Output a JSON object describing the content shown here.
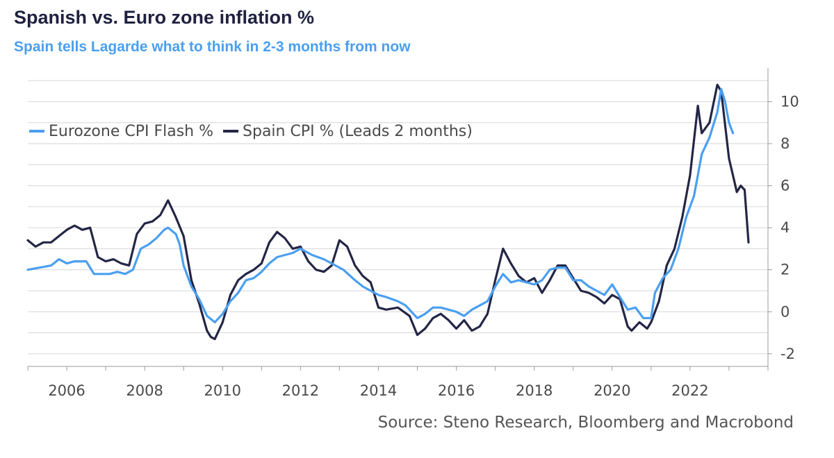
{
  "title": "Spanish vs. Euro zone inflation %",
  "subtitle": "Spain tells Lagarde what to think in 2-3 months from now",
  "source": "Source: Steno Research, Bloomberg and Macrobond",
  "colors": {
    "eurozone": "#4a9ff0",
    "spain": "#232645",
    "grid": "#d6d6d6",
    "title": "#1f2140"
  },
  "chart_data": {
    "type": "line",
    "xlim": [
      2005,
      2024
    ],
    "ylim": [
      -2.6,
      11.6
    ],
    "x_ticks": [
      2006,
      2008,
      2010,
      2012,
      2014,
      2016,
      2018,
      2020,
      2022
    ],
    "x_tick_labels": [
      "2006",
      "2008",
      "2010",
      "2012",
      "2014",
      "2016",
      "2018",
      "2020",
      "2022"
    ],
    "y_ticks": [
      -2,
      0,
      2,
      4,
      6,
      8,
      10
    ],
    "y_tick_labels": [
      "-2",
      "0",
      "2",
      "4",
      "6",
      "8",
      "10"
    ],
    "grid": true,
    "legend_position": "top-left",
    "series": [
      {
        "name": "Eurozone CPI Flash %",
        "color": "#4a9ff0",
        "points": [
          [
            2005.0,
            2.0
          ],
          [
            2005.3,
            2.1
          ],
          [
            2005.6,
            2.2
          ],
          [
            2005.8,
            2.5
          ],
          [
            2006.0,
            2.3
          ],
          [
            2006.2,
            2.4
          ],
          [
            2006.5,
            2.4
          ],
          [
            2006.7,
            1.8
          ],
          [
            2006.9,
            1.8
          ],
          [
            2007.1,
            1.8
          ],
          [
            2007.3,
            1.9
          ],
          [
            2007.5,
            1.8
          ],
          [
            2007.7,
            2.0
          ],
          [
            2007.9,
            3.0
          ],
          [
            2008.1,
            3.2
          ],
          [
            2008.3,
            3.5
          ],
          [
            2008.5,
            3.9
          ],
          [
            2008.6,
            4.0
          ],
          [
            2008.8,
            3.7
          ],
          [
            2008.9,
            3.2
          ],
          [
            2009.0,
            2.2
          ],
          [
            2009.2,
            1.2
          ],
          [
            2009.4,
            0.6
          ],
          [
            2009.5,
            0.2
          ],
          [
            2009.6,
            -0.2
          ],
          [
            2009.8,
            -0.5
          ],
          [
            2010.0,
            -0.1
          ],
          [
            2010.2,
            0.5
          ],
          [
            2010.4,
            0.9
          ],
          [
            2010.6,
            1.5
          ],
          [
            2010.8,
            1.6
          ],
          [
            2011.0,
            1.9
          ],
          [
            2011.2,
            2.3
          ],
          [
            2011.4,
            2.6
          ],
          [
            2011.6,
            2.7
          ],
          [
            2011.8,
            2.8
          ],
          [
            2012.0,
            3.0
          ],
          [
            2012.3,
            2.7
          ],
          [
            2012.6,
            2.5
          ],
          [
            2012.9,
            2.2
          ],
          [
            2013.1,
            2.0
          ],
          [
            2013.4,
            1.5
          ],
          [
            2013.6,
            1.2
          ],
          [
            2013.8,
            1.0
          ],
          [
            2014.0,
            0.8
          ],
          [
            2014.2,
            0.7
          ],
          [
            2014.5,
            0.5
          ],
          [
            2014.7,
            0.3
          ],
          [
            2015.0,
            -0.3
          ],
          [
            2015.2,
            -0.1
          ],
          [
            2015.4,
            0.2
          ],
          [
            2015.6,
            0.2
          ],
          [
            2015.8,
            0.1
          ],
          [
            2016.0,
            0.0
          ],
          [
            2016.2,
            -0.2
          ],
          [
            2016.4,
            0.1
          ],
          [
            2016.6,
            0.3
          ],
          [
            2016.8,
            0.5
          ],
          [
            2017.0,
            1.2
          ],
          [
            2017.2,
            1.8
          ],
          [
            2017.4,
            1.4
          ],
          [
            2017.6,
            1.5
          ],
          [
            2017.8,
            1.4
          ],
          [
            2018.0,
            1.3
          ],
          [
            2018.2,
            1.5
          ],
          [
            2018.4,
            2.0
          ],
          [
            2018.6,
            2.1
          ],
          [
            2018.8,
            2.1
          ],
          [
            2019.0,
            1.5
          ],
          [
            2019.2,
            1.5
          ],
          [
            2019.4,
            1.2
          ],
          [
            2019.6,
            1.0
          ],
          [
            2019.8,
            0.8
          ],
          [
            2020.0,
            1.3
          ],
          [
            2020.2,
            0.7
          ],
          [
            2020.4,
            0.1
          ],
          [
            2020.6,
            0.2
          ],
          [
            2020.8,
            -0.3
          ],
          [
            2021.0,
            -0.3
          ],
          [
            2021.1,
            0.9
          ],
          [
            2021.3,
            1.6
          ],
          [
            2021.5,
            2.0
          ],
          [
            2021.7,
            3.0
          ],
          [
            2021.9,
            4.5
          ],
          [
            2022.1,
            5.5
          ],
          [
            2022.3,
            7.5
          ],
          [
            2022.5,
            8.3
          ],
          [
            2022.7,
            9.5
          ],
          [
            2022.8,
            10.6
          ],
          [
            2022.9,
            10.0
          ],
          [
            2023.0,
            9.0
          ],
          [
            2023.1,
            8.5
          ]
        ]
      },
      {
        "name": "Spain CPI % (Leads 2 months)",
        "color": "#232645",
        "points": [
          [
            2005.0,
            3.4
          ],
          [
            2005.2,
            3.1
          ],
          [
            2005.4,
            3.3
          ],
          [
            2005.6,
            3.3
          ],
          [
            2005.8,
            3.6
          ],
          [
            2006.0,
            3.9
          ],
          [
            2006.2,
            4.1
          ],
          [
            2006.4,
            3.9
          ],
          [
            2006.6,
            4.0
          ],
          [
            2006.8,
            2.6
          ],
          [
            2007.0,
            2.4
          ],
          [
            2007.2,
            2.5
          ],
          [
            2007.4,
            2.3
          ],
          [
            2007.6,
            2.2
          ],
          [
            2007.8,
            3.7
          ],
          [
            2008.0,
            4.2
          ],
          [
            2008.2,
            4.3
          ],
          [
            2008.4,
            4.6
          ],
          [
            2008.6,
            5.3
          ],
          [
            2008.8,
            4.5
          ],
          [
            2009.0,
            3.6
          ],
          [
            2009.2,
            1.5
          ],
          [
            2009.4,
            0.4
          ],
          [
            2009.6,
            -0.9
          ],
          [
            2009.7,
            -1.2
          ],
          [
            2009.8,
            -1.3
          ],
          [
            2010.0,
            -0.5
          ],
          [
            2010.2,
            0.8
          ],
          [
            2010.4,
            1.5
          ],
          [
            2010.6,
            1.8
          ],
          [
            2010.8,
            2.0
          ],
          [
            2011.0,
            2.3
          ],
          [
            2011.2,
            3.3
          ],
          [
            2011.4,
            3.8
          ],
          [
            2011.6,
            3.5
          ],
          [
            2011.8,
            3.0
          ],
          [
            2012.0,
            3.1
          ],
          [
            2012.2,
            2.4
          ],
          [
            2012.4,
            2.0
          ],
          [
            2012.6,
            1.9
          ],
          [
            2012.8,
            2.2
          ],
          [
            2013.0,
            3.4
          ],
          [
            2013.2,
            3.1
          ],
          [
            2013.4,
            2.2
          ],
          [
            2013.6,
            1.7
          ],
          [
            2013.8,
            1.4
          ],
          [
            2014.0,
            0.2
          ],
          [
            2014.2,
            0.1
          ],
          [
            2014.5,
            0.2
          ],
          [
            2014.8,
            -0.2
          ],
          [
            2015.0,
            -1.1
          ],
          [
            2015.2,
            -0.8
          ],
          [
            2015.4,
            -0.3
          ],
          [
            2015.6,
            -0.1
          ],
          [
            2015.8,
            -0.4
          ],
          [
            2016.0,
            -0.8
          ],
          [
            2016.2,
            -0.4
          ],
          [
            2016.4,
            -0.9
          ],
          [
            2016.6,
            -0.7
          ],
          [
            2016.8,
            -0.1
          ],
          [
            2017.0,
            1.5
          ],
          [
            2017.2,
            3.0
          ],
          [
            2017.4,
            2.3
          ],
          [
            2017.6,
            1.7
          ],
          [
            2017.8,
            1.4
          ],
          [
            2018.0,
            1.6
          ],
          [
            2018.2,
            0.9
          ],
          [
            2018.4,
            1.5
          ],
          [
            2018.6,
            2.2
          ],
          [
            2018.8,
            2.2
          ],
          [
            2019.0,
            1.6
          ],
          [
            2019.2,
            1.0
          ],
          [
            2019.4,
            0.9
          ],
          [
            2019.6,
            0.7
          ],
          [
            2019.8,
            0.4
          ],
          [
            2020.0,
            0.8
          ],
          [
            2020.2,
            0.6
          ],
          [
            2020.4,
            -0.7
          ],
          [
            2020.5,
            -0.9
          ],
          [
            2020.7,
            -0.5
          ],
          [
            2020.9,
            -0.8
          ],
          [
            2021.0,
            -0.5
          ],
          [
            2021.2,
            0.5
          ],
          [
            2021.4,
            2.2
          ],
          [
            2021.6,
            3.0
          ],
          [
            2021.8,
            4.5
          ],
          [
            2022.0,
            6.5
          ],
          [
            2022.2,
            9.8
          ],
          [
            2022.3,
            8.5
          ],
          [
            2022.5,
            9.0
          ],
          [
            2022.7,
            10.8
          ],
          [
            2022.8,
            10.5
          ],
          [
            2022.9,
            8.9
          ],
          [
            2023.0,
            7.3
          ],
          [
            2023.2,
            5.7
          ],
          [
            2023.3,
            6.0
          ],
          [
            2023.4,
            5.8
          ],
          [
            2023.5,
            3.3
          ]
        ]
      }
    ]
  }
}
